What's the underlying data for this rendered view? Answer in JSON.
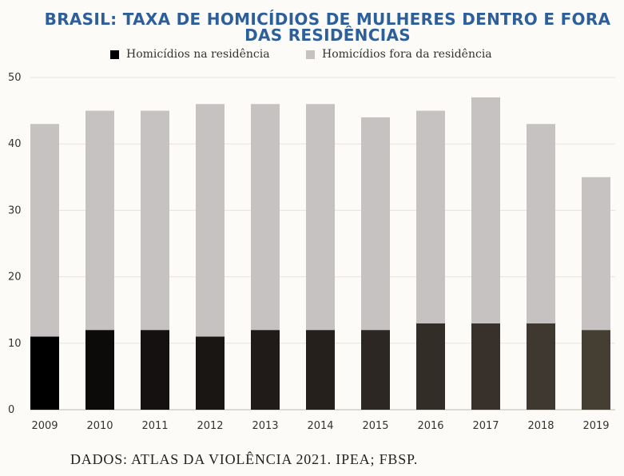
{
  "chart_data": {
    "type": "bar",
    "stacked": true,
    "title": "BRASIL: TAXA DE HOMICÍDIOS DE MULHERES DENTRO E FORA DAS RESIDÊNCIAS",
    "categories": [
      "2009",
      "2010",
      "2011",
      "2012",
      "2013",
      "2014",
      "2015",
      "2016",
      "2017",
      "2018",
      "2019"
    ],
    "series": [
      {
        "name": "Homicídios na residência",
        "values": [
          11,
          12,
          12,
          11,
          12,
          12,
          12,
          13,
          13,
          13,
          12
        ]
      },
      {
        "name": "Homicídios fora da residência",
        "values": [
          32,
          33,
          33,
          35,
          34,
          34,
          32,
          32,
          34,
          30,
          23
        ]
      }
    ],
    "ylim": [
      0,
      50
    ],
    "yticks": [
      "0",
      "10",
      "20",
      "30",
      "40",
      "50"
    ],
    "grid": true,
    "legend_position": "top",
    "colors": {
      "residencia": [
        "#000000",
        "#0d0b0a",
        "#141110",
        "#1a1614",
        "#201b19",
        "#26201d",
        "#2d2723",
        "#332d28",
        "#38312b",
        "#3e3830",
        "#453f33"
      ],
      "fora": "#c6c2c1",
      "title": "#2d5f9a",
      "grid": "#e6e3df"
    }
  },
  "source": "DADOS: ATLAS DA VIOLÊNCIA 2021. IPEA; FBSP."
}
